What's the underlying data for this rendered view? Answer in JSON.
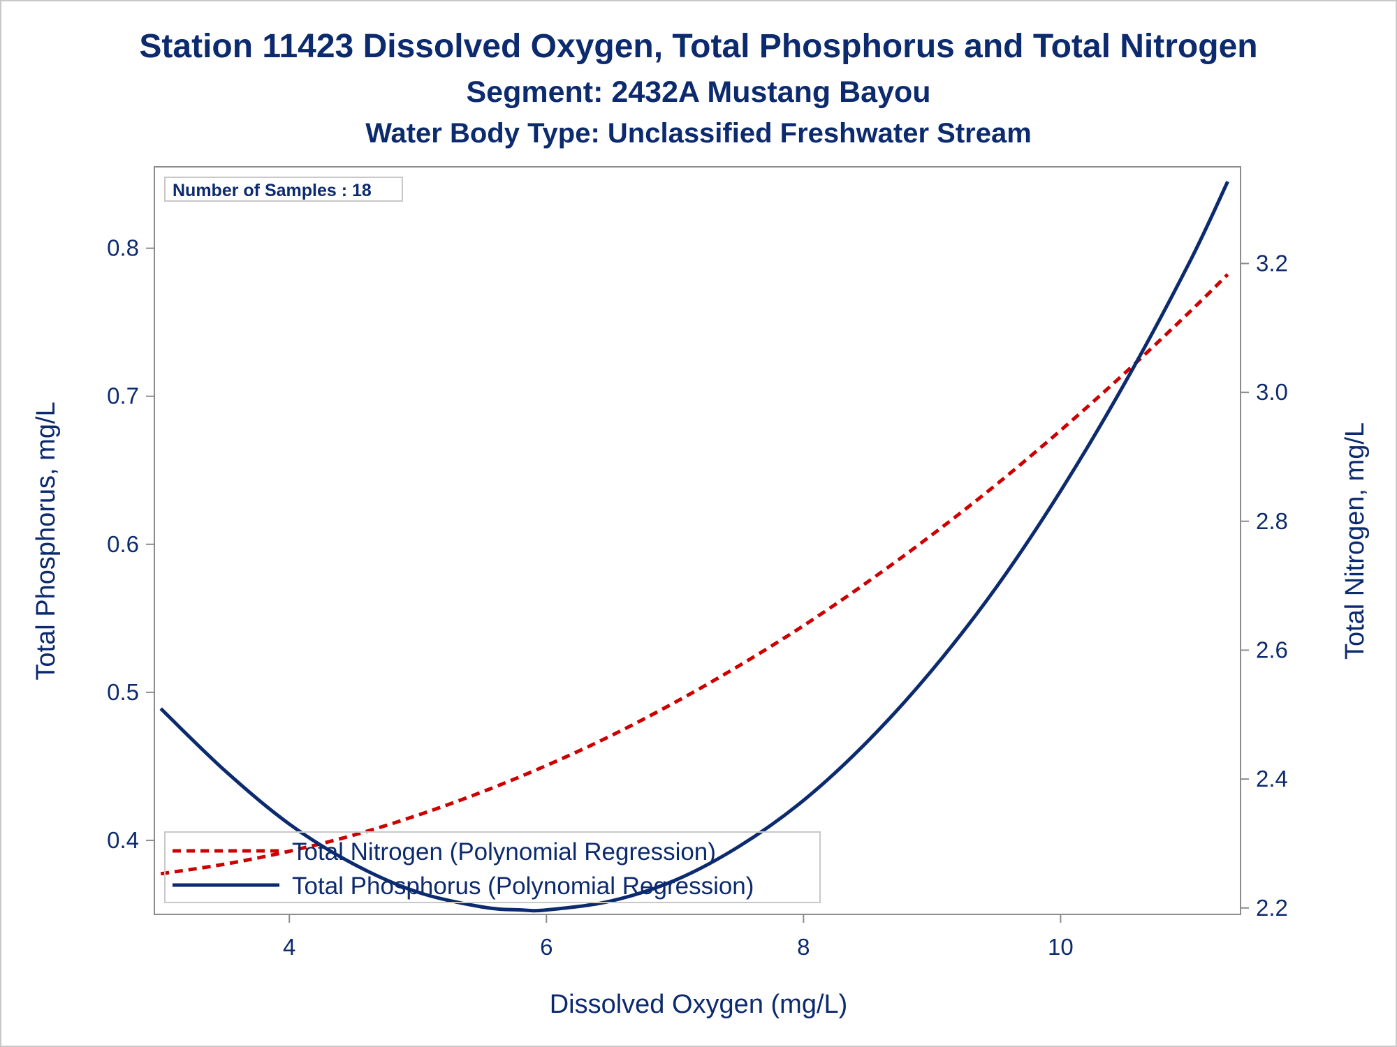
{
  "chart_data": {
    "type": "line",
    "title": "Station 11423  Dissolved Oxygen, Total Phosphorus and Total Nitrogen",
    "subtitle": "Segment: 2432A  Mustang Bayou",
    "subtitle2": "Water Body Type: Unclassified Freshwater Stream",
    "xlabel": "Dissolved Oxygen (mg/L)",
    "ylabel": "Total Phosphorus, mg/L",
    "y2label": "Total Nitrogen, mg/L",
    "xlim": [
      2.95,
      11.4
    ],
    "ylim": [
      0.35,
      0.855
    ],
    "y2lim": [
      2.19,
      3.35
    ],
    "xticks": [
      4,
      6,
      8,
      10
    ],
    "xtick_labels": [
      "4",
      "6",
      "8",
      "10"
    ],
    "yticks": [
      0.4,
      0.5,
      0.6,
      0.7,
      0.8
    ],
    "ytick_labels": [
      "0.4",
      "0.5",
      "0.6",
      "0.7",
      "0.8"
    ],
    "y2ticks": [
      2.2,
      2.4,
      2.6,
      2.8,
      3.0,
      3.2
    ],
    "y2tick_labels": [
      "2.2",
      "2.4",
      "2.6",
      "2.8",
      "3.0",
      "3.2"
    ],
    "annotation": "Number of Samples : 18",
    "legend_position": "bottom-left",
    "grid": false,
    "series": [
      {
        "name": "Total Nitrogen (Polynomial Regression)",
        "axis": "y2",
        "style": "dashed",
        "color": "#cc0000",
        "x": [
          3.0,
          3.5,
          4.0,
          4.5,
          5.0,
          5.5,
          6.0,
          6.5,
          7.0,
          7.5,
          8.0,
          8.5,
          9.0,
          9.5,
          10.0,
          10.5,
          11.0,
          11.3
        ],
        "y": [
          2.253,
          2.268,
          2.288,
          2.313,
          2.344,
          2.38,
          2.421,
          2.467,
          2.519,
          2.576,
          2.638,
          2.706,
          2.779,
          2.857,
          2.941,
          3.03,
          3.124,
          3.183
        ]
      },
      {
        "name": "Total Phosphorus (Polynomial Regression)",
        "axis": "y",
        "style": "solid",
        "color": "#0c2a6e",
        "x": [
          3.0,
          3.5,
          4.0,
          4.5,
          5.0,
          5.5,
          5.8,
          6.0,
          6.5,
          7.0,
          7.5,
          8.0,
          8.5,
          9.0,
          9.5,
          10.0,
          10.5,
          11.0,
          11.3
        ],
        "y": [
          0.489,
          0.447,
          0.411,
          0.384,
          0.365,
          0.355,
          0.353,
          0.353,
          0.359,
          0.373,
          0.396,
          0.427,
          0.467,
          0.515,
          0.571,
          0.636,
          0.709,
          0.79,
          0.845
        ]
      }
    ]
  }
}
